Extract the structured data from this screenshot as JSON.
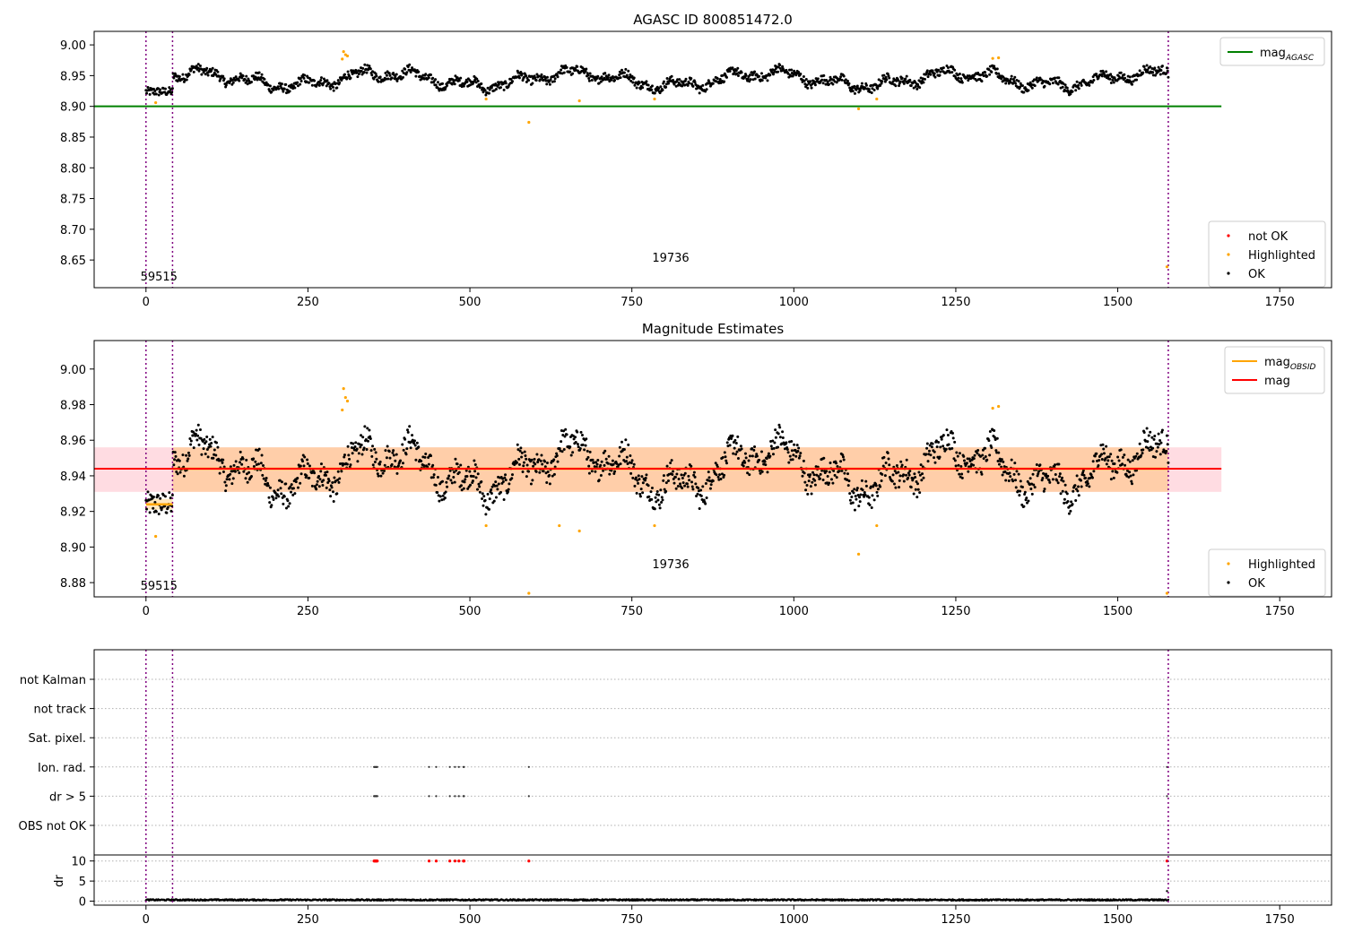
{
  "chart_data": [
    {
      "type": "scatter",
      "title": "AGASC ID 800851472.0",
      "xlim": [
        -80,
        1830
      ],
      "ylim": [
        8.605,
        9.022
      ],
      "xticks": [
        0,
        250,
        500,
        750,
        1000,
        1250,
        1500,
        1750
      ],
      "yticks": [
        8.65,
        8.7,
        8.75,
        8.8,
        8.85,
        8.9,
        8.95,
        9.0
      ],
      "ytick_labels": [
        "8.65",
        "8.70",
        "8.75",
        "8.80",
        "8.85",
        "8.90",
        "8.95",
        "9.00"
      ],
      "obs_boundaries": [
        0,
        41,
        1578
      ],
      "obs_labels": [
        {
          "x": 20,
          "y": 8.617,
          "text": "59515"
        },
        {
          "x": 810,
          "y": 8.647,
          "text": "19736"
        }
      ],
      "reference_lines": [
        {
          "name": "mag_AGASC",
          "value": 8.9,
          "color": "#008000",
          "x_range": [
            -80,
            1660
          ]
        }
      ],
      "legends": [
        {
          "position": "top-right",
          "entries": [
            {
              "label": "mag",
              "sub": "AGASC",
              "marker": "line",
              "color": "#008000"
            }
          ]
        },
        {
          "position": "bottom-right",
          "entries": [
            {
              "label": "not OK",
              "marker": "point",
              "color": "#ff0000"
            },
            {
              "label": "Highlighted",
              "marker": "point",
              "color": "#ffa500"
            },
            {
              "label": "OK",
              "marker": "point",
              "color": "#000000"
            }
          ]
        }
      ],
      "series": [
        {
          "name": "OK",
          "color": "#000000",
          "generated": true,
          "x_range": [
            0,
            1578
          ],
          "n": 1580
        },
        {
          "name": "Highlighted",
          "color": "#ffa500",
          "points": [
            [
              15,
              8.906
            ],
            [
              305,
              8.989
            ],
            [
              308,
              8.984
            ],
            [
              311,
              8.982
            ],
            [
              303,
              8.977
            ],
            [
              525,
              8.912
            ],
            [
              591,
              8.874
            ],
            [
              669,
              8.909
            ],
            [
              785,
              8.912
            ],
            [
              1100,
              8.896
            ],
            [
              1128,
              8.912
            ],
            [
              1307,
              8.978
            ],
            [
              1316,
              8.979
            ],
            [
              1576,
              8.639
            ]
          ]
        }
      ],
      "gray_line": {
        "x_range": [
          0,
          1578
        ],
        "value": 8.944
      }
    },
    {
      "type": "scatter",
      "title": "Magnitude Estimates",
      "xlim": [
        -80,
        1830
      ],
      "ylim": [
        8.872,
        9.016
      ],
      "xticks": [
        0,
        250,
        500,
        750,
        1000,
        1250,
        1500,
        1750
      ],
      "yticks": [
        8.88,
        8.9,
        8.92,
        8.94,
        8.96,
        8.98,
        9.0
      ],
      "ytick_labels": [
        "8.88",
        "8.90",
        "8.92",
        "8.94",
        "8.96",
        "8.98",
        "9.00"
      ],
      "obs_boundaries": [
        0,
        41,
        1578
      ],
      "obs_labels": [
        {
          "x": 20,
          "y": 8.876,
          "text": "59515"
        },
        {
          "x": 810,
          "y": 8.888,
          "text": "19736"
        }
      ],
      "mean_mag": {
        "value": 8.944,
        "color": "#ff0000",
        "x_range": [
          -80,
          1660
        ],
        "band": [
          8.931,
          8.956
        ]
      },
      "obsid_mags": [
        {
          "x_range": [
            0,
            41
          ],
          "value": 8.924,
          "band": [
            8.921,
            8.927
          ]
        },
        {
          "x_range": [
            41,
            1578
          ],
          "value": 8.944,
          "band": [
            8.931,
            8.956
          ]
        }
      ],
      "legends": [
        {
          "position": "top-right",
          "entries": [
            {
              "label": "mag",
              "sub": "OBSID",
              "marker": "line",
              "color": "#ffa500"
            },
            {
              "label": "mag",
              "marker": "line",
              "color": "#ff0000"
            }
          ]
        },
        {
          "position": "bottom-right",
          "entries": [
            {
              "label": "Highlighted",
              "marker": "point",
              "color": "#ffa500"
            },
            {
              "label": "OK",
              "marker": "point",
              "color": "#000000"
            }
          ]
        }
      ],
      "series": [
        {
          "name": "OK",
          "color": "#000000",
          "generated": true,
          "x_range": [
            0,
            1578
          ],
          "n": 1580
        },
        {
          "name": "Highlighted",
          "color": "#ffa500",
          "points": [
            [
              15,
              8.906
            ],
            [
              305,
              8.989
            ],
            [
              308,
              8.984
            ],
            [
              311,
              8.982
            ],
            [
              303,
              8.977
            ],
            [
              525,
              8.912
            ],
            [
              591,
              8.874
            ],
            [
              638,
              8.912
            ],
            [
              669,
              8.909
            ],
            [
              785,
              8.912
            ],
            [
              1100,
              8.896
            ],
            [
              1128,
              8.912
            ],
            [
              1307,
              8.978
            ],
            [
              1316,
              8.979
            ],
            [
              1576,
              8.874
            ]
          ]
        }
      ]
    },
    {
      "type": "scatter",
      "title": "",
      "xlim": [
        -80,
        1830
      ],
      "xticks": [
        0,
        250,
        500,
        750,
        1000,
        1250,
        1500,
        1750
      ],
      "flag_categories": [
        "not Kalman",
        "not track",
        "Sat. pixel.",
        "Ion. rad.",
        "dr > 5",
        "OBS not OK"
      ],
      "flags": {
        "Ion. rad.": [
          352,
          353,
          354,
          355,
          356,
          357,
          437,
          448,
          469,
          477,
          483,
          490,
          491,
          591,
          1576
        ],
        "dr > 5": [
          352,
          353,
          354,
          355,
          356,
          357,
          437,
          448,
          469,
          477,
          483,
          490,
          491,
          591,
          1576
        ]
      },
      "obs_boundaries": [
        0,
        41,
        1578
      ],
      "dr": {
        "ylabel": "dr",
        "ylim": [
          -1,
          11.5
        ],
        "yticks": [
          0,
          5,
          10
        ],
        "ytick_labels": [
          "0",
          "5",
          "10"
        ],
        "threshold": 10,
        "outliers_x": [
          352,
          353,
          354,
          355,
          356,
          357,
          437,
          448,
          469,
          477,
          483,
          490,
          491,
          591,
          1576
        ],
        "typical_value": 0.3
      }
    }
  ]
}
